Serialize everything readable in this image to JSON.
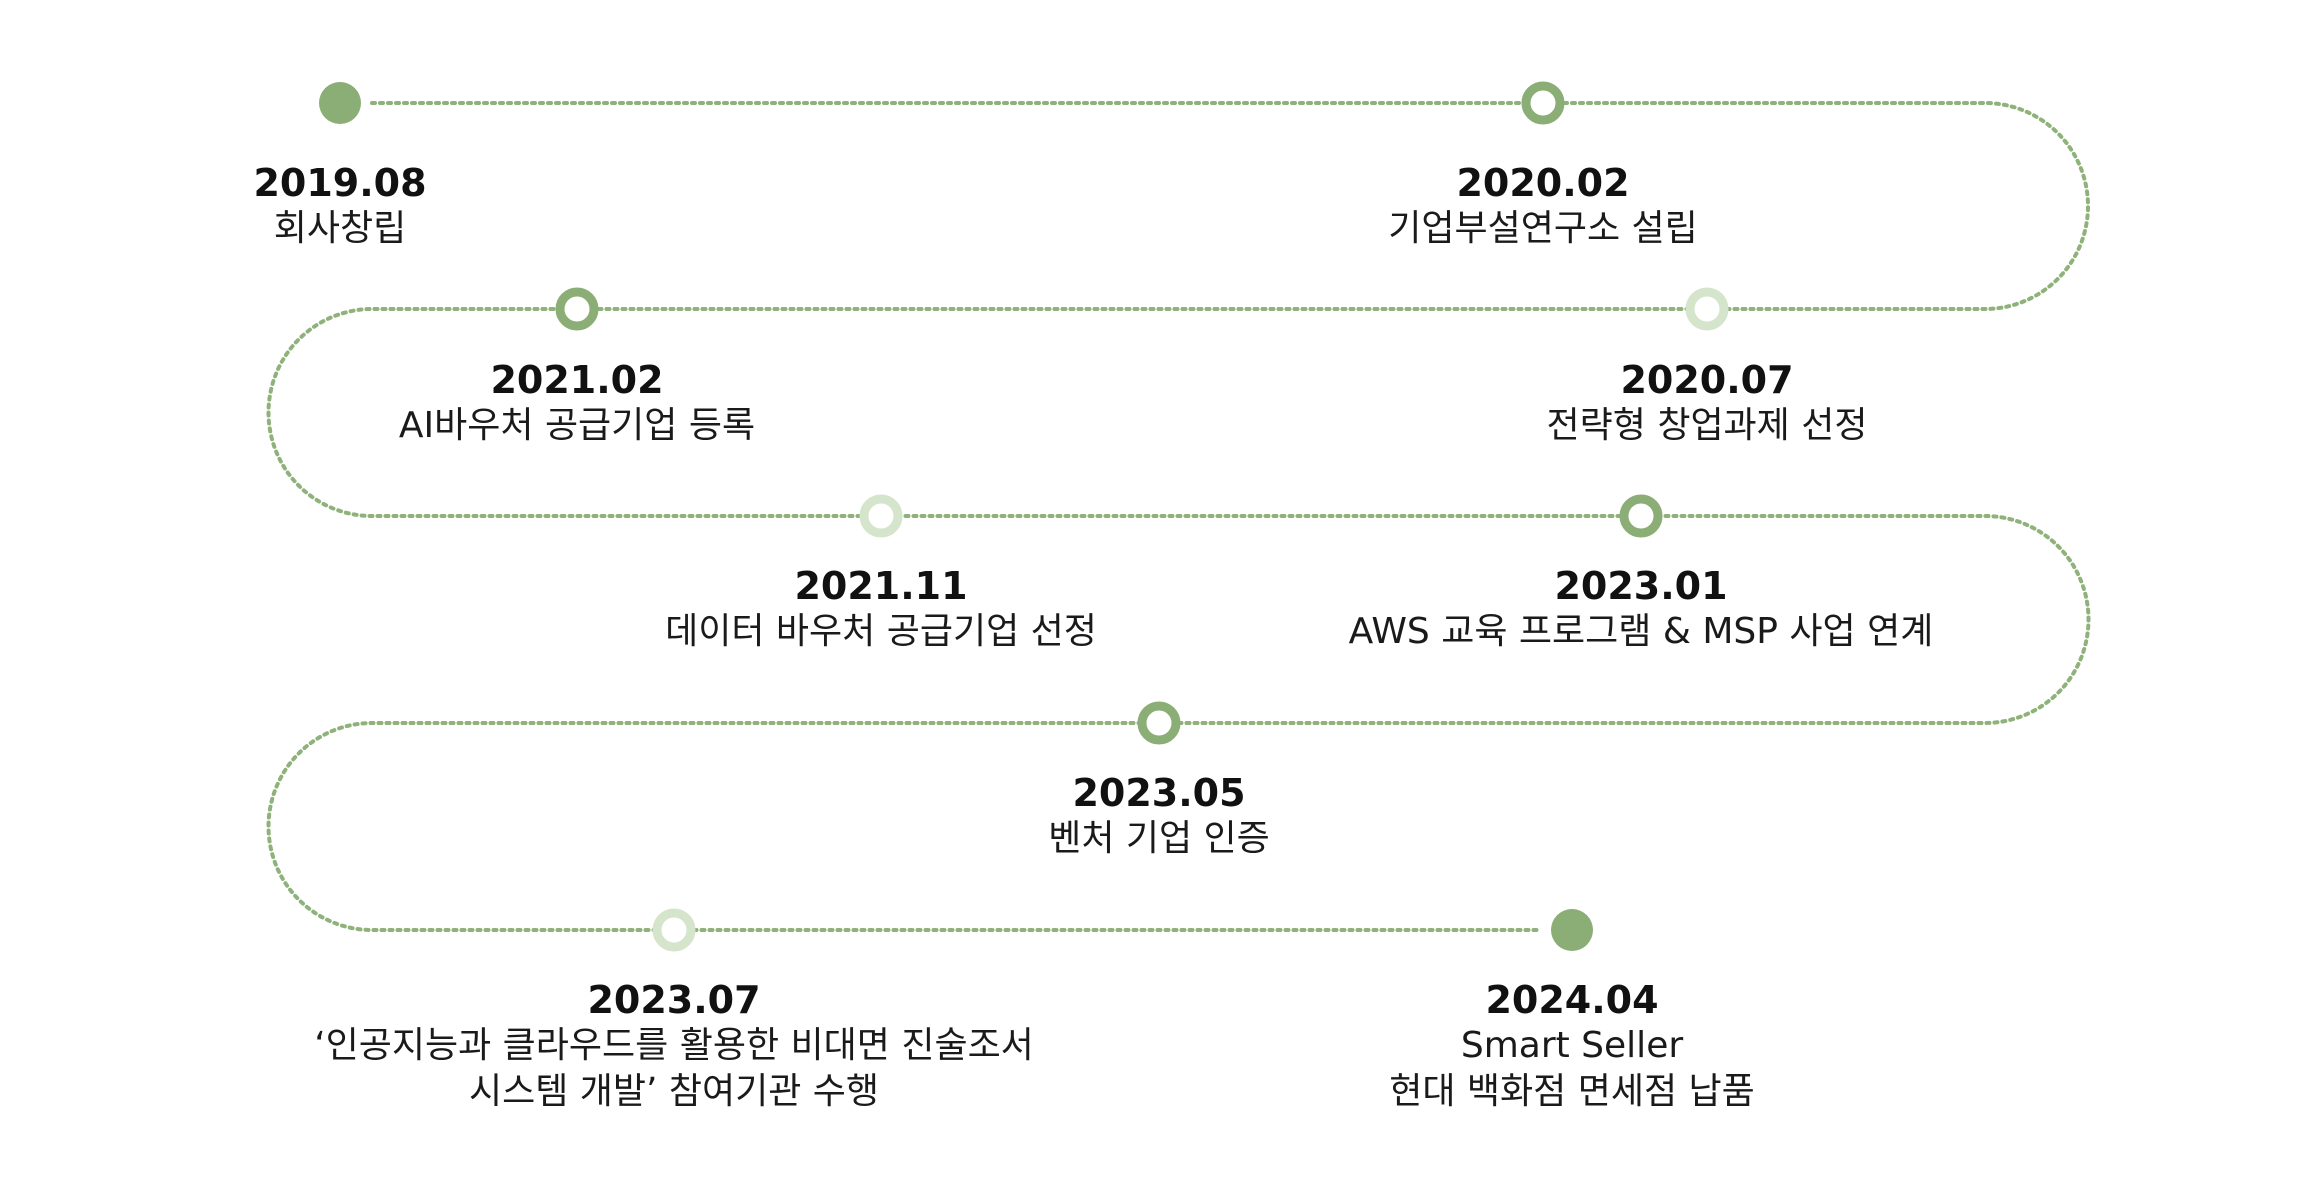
{
  "colors": {
    "line": "#8fb27b",
    "marker_dark": "#8aae75",
    "marker_light": "#d5e5cb"
  },
  "milestones": [
    {
      "date": "2019.08",
      "description": [
        "회사창립"
      ],
      "marker": "filled"
    },
    {
      "date": "2020.02",
      "description": [
        "기업부설연구소 설립"
      ],
      "marker": "ring-dark"
    },
    {
      "date": "2020.07",
      "description": [
        "전략형 창업과제 선정"
      ],
      "marker": "ring-light"
    },
    {
      "date": "2021.02",
      "description": [
        "AI바우처 공급기업 등록"
      ],
      "marker": "ring-dark"
    },
    {
      "date": "2021.11",
      "description": [
        "데이터 바우처 공급기업 선정"
      ],
      "marker": "ring-light"
    },
    {
      "date": "2023.01",
      "description": [
        "AWS 교육 프로그램 & MSP 사업 연계"
      ],
      "marker": "ring-dark"
    },
    {
      "date": "2023.05",
      "description": [
        "벤처 기업 인증"
      ],
      "marker": "ring-dark"
    },
    {
      "date": "2023.07",
      "description": [
        "‘인공지능과 클라우드를 활용한 비대면 진술조서",
        "시스템 개발’ 참여기관 수행"
      ],
      "marker": "ring-light"
    },
    {
      "date": "2024.04",
      "description": [
        "Smart Seller",
        "현대 백화점 면세점 납품"
      ],
      "marker": "filled"
    }
  ]
}
